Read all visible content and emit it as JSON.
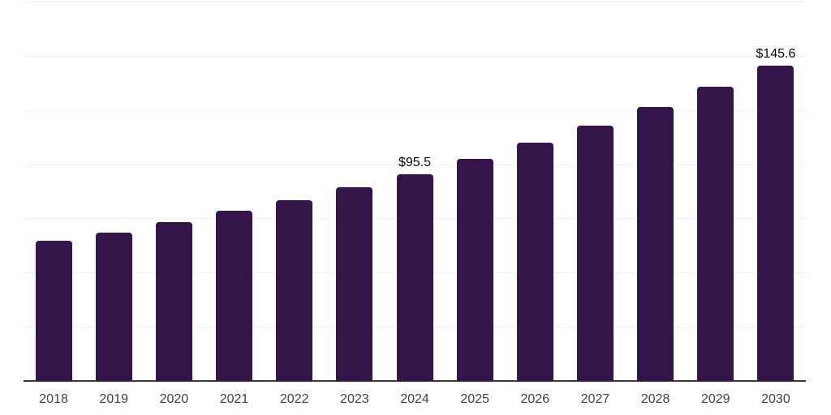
{
  "chart_data": {
    "type": "bar",
    "title": "",
    "xlabel": "",
    "ylabel": "",
    "categories": [
      "2018",
      "2019",
      "2020",
      "2021",
      "2022",
      "2023",
      "2024",
      "2025",
      "2026",
      "2027",
      "2028",
      "2029",
      "2030"
    ],
    "values": [
      64.6,
      68.6,
      73.2,
      78.4,
      83.5,
      89.2,
      95.5,
      102.3,
      110.0,
      117.9,
      126.3,
      135.8,
      145.6
    ],
    "data_labels": [
      null,
      null,
      null,
      null,
      null,
      null,
      "$95.5",
      null,
      null,
      null,
      null,
      null,
      "$145.6"
    ],
    "ylim": [
      0,
      175
    ],
    "gridline_step": 25,
    "grid": true,
    "legend": false,
    "colors": {
      "bar": "#341549",
      "gridline": "#f2f2f3",
      "axis_line": "#3a3a3a",
      "tick_label": "#424242",
      "data_label": "#0a0a0a",
      "background": "#ffffff"
    }
  }
}
